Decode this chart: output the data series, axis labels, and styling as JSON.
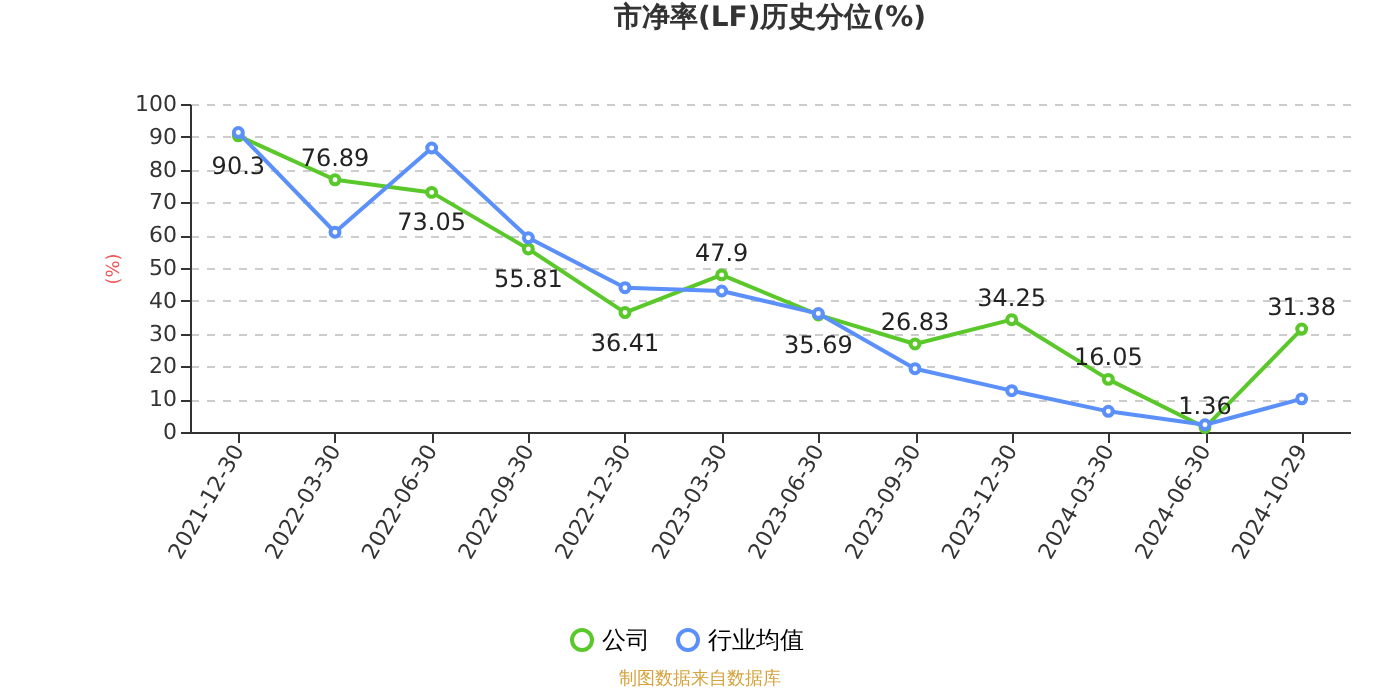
{
  "chart_data": {
    "type": "line",
    "title": "市净率(LF)历史分位(%)",
    "ylabel": "(%)",
    "categories": [
      "2021-12-30",
      "2022-03-30",
      "2022-06-30",
      "2022-09-30",
      "2022-12-30",
      "2023-03-30",
      "2023-06-30",
      "2023-09-30",
      "2023-12-30",
      "2024-03-30",
      "2024-06-30",
      "2024-10-29"
    ],
    "series": [
      {
        "name": "公司",
        "color": "#5ac82a",
        "values": [
          90.3,
          76.89,
          73.05,
          55.81,
          36.41,
          47.9,
          35.69,
          26.83,
          34.25,
          16.05,
          1.36,
          31.38
        ],
        "value_labels": [
          "90.3",
          "76.89",
          "73.05",
          "55.81",
          "36.41",
          "47.9",
          "35.69",
          "26.83",
          "34.25",
          "16.05",
          "1.36",
          "31.38"
        ]
      },
      {
        "name": "行业均值",
        "color": "#5b8ff9",
        "values": [
          91.3,
          60.9,
          86.6,
          59.2,
          44.0,
          43.0,
          36.1,
          19.3,
          12.6,
          6.3,
          2.2,
          10.1
        ]
      }
    ],
    "ylim": [
      0,
      100
    ],
    "yticks": [
      0,
      10,
      20,
      30,
      40,
      50,
      60,
      70,
      80,
      90,
      100
    ],
    "grid": "y",
    "legend": "bottom",
    "marker": "circle",
    "line_style": "solid",
    "annotations": [
      "制图数据来自数据库"
    ]
  }
}
